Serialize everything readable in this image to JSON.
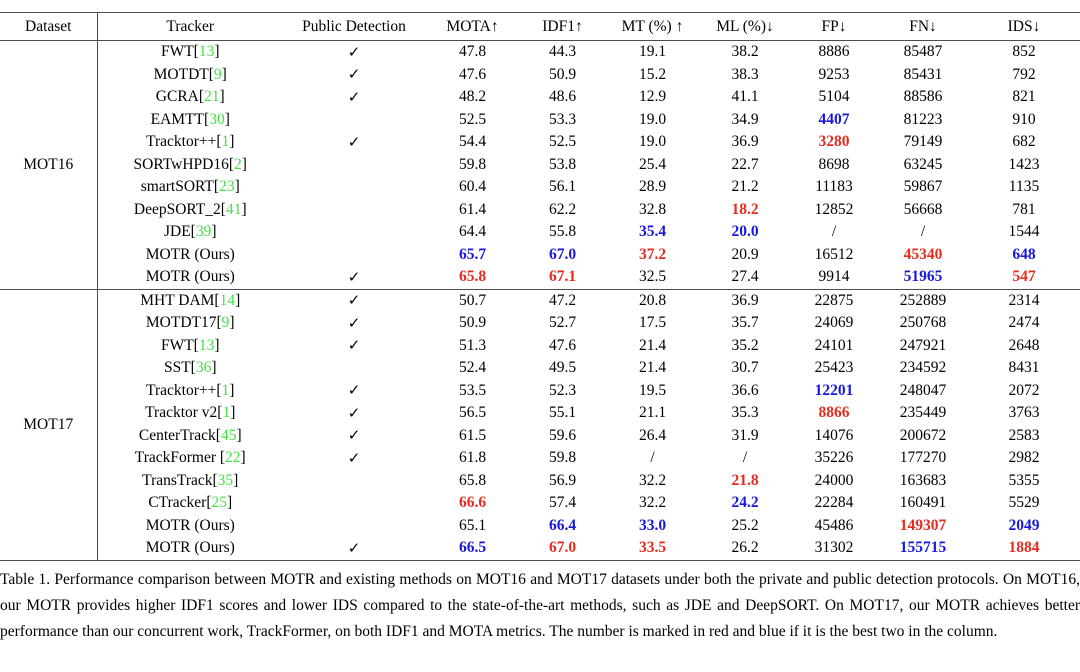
{
  "header": {
    "columns": [
      "Dataset",
      "Tracker",
      "Public Detection",
      "MOTA↑",
      "IDF1↑",
      "MT (%) ↑",
      "ML (%)↓",
      "FP↓",
      "FN↓",
      "IDS↓"
    ]
  },
  "check_glyph": "✓",
  "colors": {
    "best": "#e62b1e",
    "second_best": "#1717dd",
    "citation": "#45e045",
    "text": "#000000",
    "rule": "#4d4d4d"
  },
  "metric_keys": [
    "mota",
    "idf1",
    "mt",
    "ml",
    "fp",
    "fn",
    "ids"
  ],
  "sections": [
    {
      "dataset": "MOT16",
      "rows": [
        {
          "tracker": "FWT",
          "cite": "13",
          "space_before_bracket": false,
          "public_detection": true,
          "metrics": [
            "47.8",
            "44.3",
            "19.1",
            "38.2",
            "8886",
            "85487",
            "852"
          ],
          "highlight": [
            "",
            "",
            "",
            "",
            "",
            "",
            ""
          ]
        },
        {
          "tracker": "MOTDT",
          "cite": "9",
          "space_before_bracket": false,
          "public_detection": true,
          "metrics": [
            "47.6",
            "50.9",
            "15.2",
            "38.3",
            "9253",
            "85431",
            "792"
          ],
          "highlight": [
            "",
            "",
            "",
            "",
            "",
            "",
            ""
          ]
        },
        {
          "tracker": "GCRA",
          "cite": "21",
          "space_before_bracket": false,
          "public_detection": true,
          "metrics": [
            "48.2",
            "48.6",
            "12.9",
            "41.1",
            "5104",
            "88586",
            "821"
          ],
          "highlight": [
            "",
            "",
            "",
            "",
            "",
            "",
            ""
          ]
        },
        {
          "tracker": "EAMTT",
          "cite": "30",
          "space_before_bracket": false,
          "public_detection": false,
          "metrics": [
            "52.5",
            "53.3",
            "19.0",
            "34.9",
            "4407",
            "81223",
            "910"
          ],
          "highlight": [
            "",
            "",
            "",
            "",
            "blue",
            "",
            ""
          ]
        },
        {
          "tracker": "Tracktor++",
          "cite": "1",
          "space_before_bracket": false,
          "public_detection": true,
          "metrics": [
            "54.4",
            "52.5",
            "19.0",
            "36.9",
            "3280",
            "79149",
            "682"
          ],
          "highlight": [
            "",
            "",
            "",
            "",
            "red",
            "",
            ""
          ]
        },
        {
          "tracker": "SORTwHPD16",
          "cite": "2",
          "space_before_bracket": false,
          "public_detection": false,
          "metrics": [
            "59.8",
            "53.8",
            "25.4",
            "22.7",
            "8698",
            "63245",
            "1423"
          ],
          "highlight": [
            "",
            "",
            "",
            "",
            "",
            "",
            ""
          ]
        },
        {
          "tracker": "smartSORT",
          "cite": "23",
          "space_before_bracket": false,
          "public_detection": false,
          "metrics": [
            "60.4",
            "56.1",
            "28.9",
            "21.2",
            "11183",
            "59867",
            "1135"
          ],
          "highlight": [
            "",
            "",
            "",
            "",
            "",
            "",
            ""
          ]
        },
        {
          "tracker": "DeepSORT_2",
          "cite": "41",
          "space_before_bracket": false,
          "public_detection": false,
          "metrics": [
            "61.4",
            "62.2",
            "32.8",
            "18.2",
            "12852",
            "56668",
            "781"
          ],
          "highlight": [
            "",
            "",
            "",
            "red",
            "",
            "",
            ""
          ]
        },
        {
          "tracker": "JDE",
          "cite": "39",
          "space_before_bracket": false,
          "public_detection": false,
          "metrics": [
            "64.4",
            "55.8",
            "35.4",
            "20.0",
            "/",
            "/",
            "1544"
          ],
          "highlight": [
            "",
            "",
            "blue",
            "blue",
            "",
            "",
            ""
          ]
        },
        {
          "tracker": "MOTR (Ours)",
          "cite": null,
          "space_before_bracket": false,
          "public_detection": false,
          "metrics": [
            "65.7",
            "67.0",
            "37.2",
            "20.9",
            "16512",
            "45340",
            "648"
          ],
          "highlight": [
            "blue",
            "blue",
            "red",
            "",
            "",
            "red",
            "blue"
          ]
        },
        {
          "tracker": "MOTR (Ours)",
          "cite": null,
          "space_before_bracket": false,
          "public_detection": true,
          "metrics": [
            "65.8",
            "67.1",
            "32.5",
            "27.4",
            "9914",
            "51965",
            "547"
          ],
          "highlight": [
            "red",
            "red",
            "",
            "",
            "",
            "blue",
            "red"
          ]
        }
      ]
    },
    {
      "dataset": "MOT17",
      "rows": [
        {
          "tracker": "MHT DAM",
          "cite": "14",
          "space_before_bracket": false,
          "public_detection": true,
          "metrics": [
            "50.7",
            "47.2",
            "20.8",
            "36.9",
            "22875",
            "252889",
            "2314"
          ],
          "highlight": [
            "",
            "",
            "",
            "",
            "",
            "",
            ""
          ]
        },
        {
          "tracker": "MOTDT17",
          "cite": "9",
          "space_before_bracket": false,
          "public_detection": true,
          "metrics": [
            "50.9",
            "52.7",
            "17.5",
            "35.7",
            "24069",
            "250768",
            "2474"
          ],
          "highlight": [
            "",
            "",
            "",
            "",
            "",
            "",
            ""
          ]
        },
        {
          "tracker": "FWT",
          "cite": "13",
          "space_before_bracket": false,
          "public_detection": true,
          "metrics": [
            "51.3",
            "47.6",
            "21.4",
            "35.2",
            "24101",
            "247921",
            "2648"
          ],
          "highlight": [
            "",
            "",
            "",
            "",
            "",
            "",
            ""
          ]
        },
        {
          "tracker": "SST",
          "cite": "36",
          "space_before_bracket": false,
          "public_detection": false,
          "metrics": [
            "52.4",
            "49.5",
            "21.4",
            "30.7",
            "25423",
            "234592",
            "8431"
          ],
          "highlight": [
            "",
            "",
            "",
            "",
            "",
            "",
            ""
          ]
        },
        {
          "tracker": "Tracktor++",
          "cite": "1",
          "space_before_bracket": false,
          "public_detection": true,
          "metrics": [
            "53.5",
            "52.3",
            "19.5",
            "36.6",
            "12201",
            "248047",
            "2072"
          ],
          "highlight": [
            "",
            "",
            "",
            "",
            "blue",
            "",
            ""
          ]
        },
        {
          "tracker": "Tracktor v2",
          "cite": "1",
          "space_before_bracket": false,
          "public_detection": true,
          "metrics": [
            "56.5",
            "55.1",
            "21.1",
            "35.3",
            "8866",
            "235449",
            "3763"
          ],
          "highlight": [
            "",
            "",
            "",
            "",
            "red",
            "",
            ""
          ]
        },
        {
          "tracker": "CenterTrack",
          "cite": "45",
          "space_before_bracket": false,
          "public_detection": true,
          "metrics": [
            "61.5",
            "59.6",
            "26.4",
            "31.9",
            "14076",
            "200672",
            "2583"
          ],
          "highlight": [
            "",
            "",
            "",
            "",
            "",
            "",
            ""
          ]
        },
        {
          "tracker": "TrackFormer",
          "cite": "22",
          "space_before_bracket": true,
          "public_detection": true,
          "metrics": [
            "61.8",
            "59.8",
            "/",
            "/",
            "35226",
            "177270",
            "2982"
          ],
          "highlight": [
            "",
            "",
            "",
            "",
            "",
            "",
            ""
          ]
        },
        {
          "tracker": "TransTrack",
          "cite": "35",
          "space_before_bracket": false,
          "public_detection": false,
          "metrics": [
            "65.8",
            "56.9",
            "32.2",
            "21.8",
            "24000",
            "163683",
            "5355"
          ],
          "highlight": [
            "",
            "",
            "",
            "red",
            "",
            "",
            ""
          ]
        },
        {
          "tracker": "CTracker",
          "cite": "25",
          "space_before_bracket": false,
          "public_detection": false,
          "metrics": [
            "66.6",
            "57.4",
            "32.2",
            "24.2",
            "22284",
            "160491",
            "5529"
          ],
          "highlight": [
            "red",
            "",
            "",
            "blue",
            "",
            "",
            ""
          ]
        },
        {
          "tracker": "MOTR (Ours)",
          "cite": null,
          "space_before_bracket": false,
          "public_detection": false,
          "metrics": [
            "65.1",
            "66.4",
            "33.0",
            "25.2",
            "45486",
            "149307",
            "2049"
          ],
          "highlight": [
            "",
            "blue",
            "blue",
            "",
            "",
            "red",
            "blue"
          ]
        },
        {
          "tracker": "MOTR (Ours)",
          "cite": null,
          "space_before_bracket": false,
          "public_detection": true,
          "metrics": [
            "66.5",
            "67.0",
            "33.5",
            "26.2",
            "31302",
            "155715",
            "1884"
          ],
          "highlight": [
            "blue",
            "red",
            "red",
            "",
            "",
            "blue",
            "red"
          ]
        }
      ]
    }
  ],
  "caption": "Table 1. Performance comparison between MOTR and existing methods on MOT16 and MOT17 datasets under both the private and public detection protocols. On MOT16, our MOTR provides higher IDF1 scores and lower IDS compared to the state-of-the-art methods, such as JDE and DeepSORT. On MOT17, our MOTR achieves better performance than our concurrent work, TrackFormer, on both IDF1 and MOTA metrics. The number is marked in red and blue if it is the best two in the column."
}
